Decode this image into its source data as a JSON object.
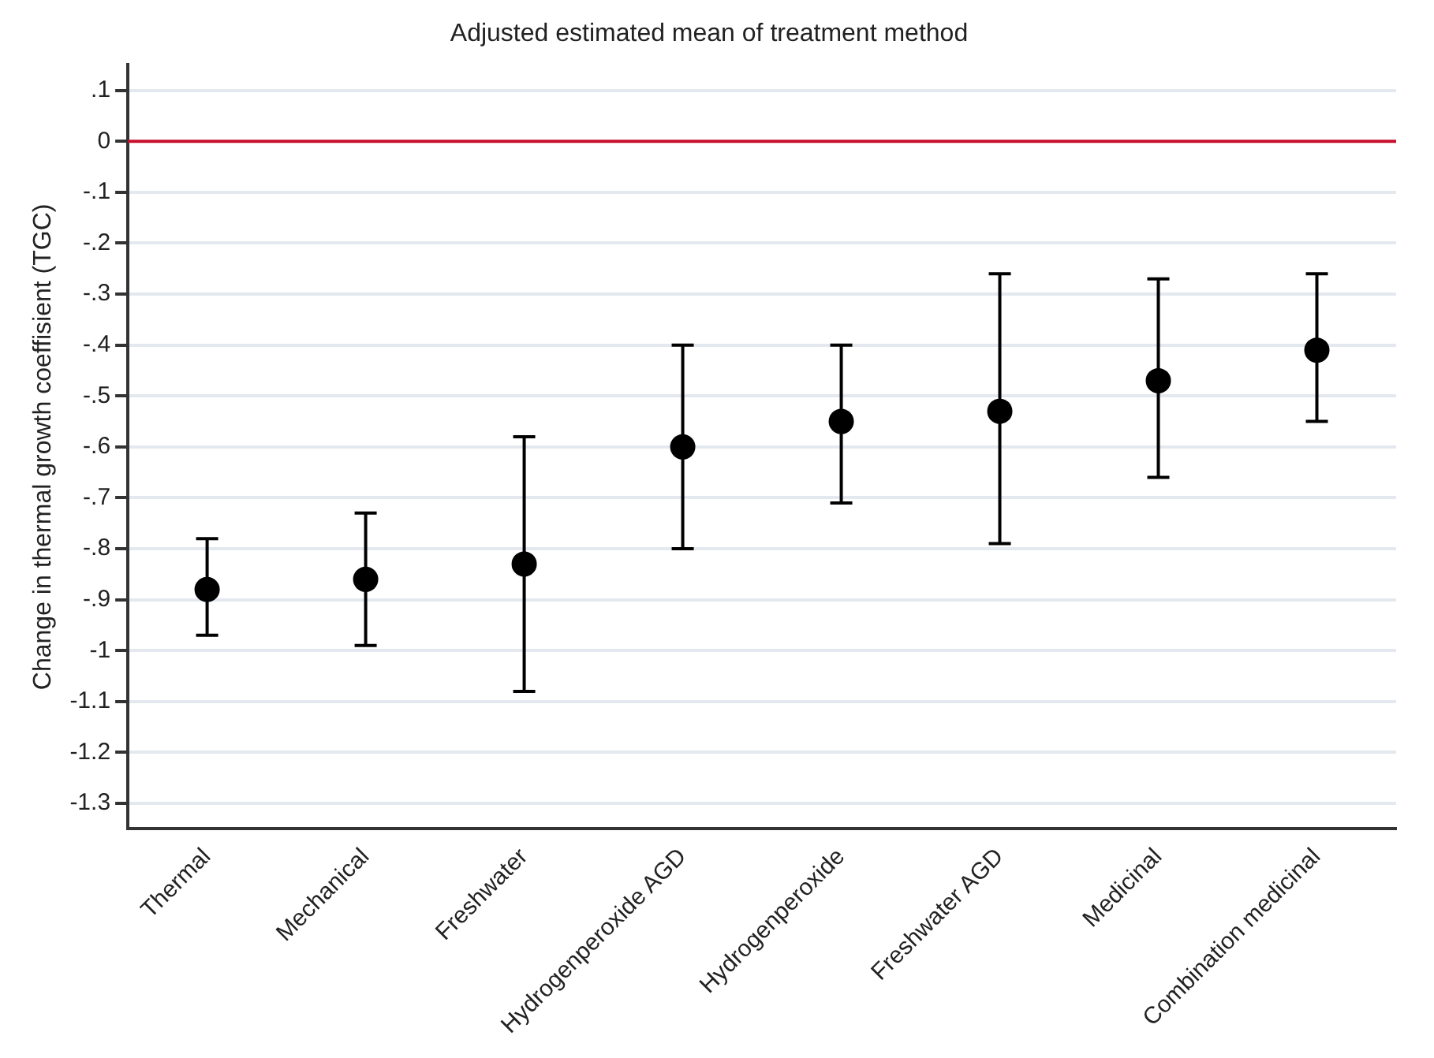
{
  "chart_data": {
    "type": "scatter",
    "title": "Adjusted estimated mean of treatment method",
    "ylabel": "Change in thermal growth coeffisient (TGC)",
    "categories": [
      "Thermal",
      "Mechanical",
      "Freshwater",
      "Hydrogenperoxide AGD",
      "Hydrogenperoxide",
      "Freshwater AGD",
      "Medicinal",
      "Combination medicinal"
    ],
    "values": [
      -0.88,
      -0.86,
      -0.83,
      -0.6,
      -0.55,
      -0.53,
      -0.47,
      -0.41
    ],
    "errors": [
      [
        -0.97,
        -0.78
      ],
      [
        -0.99,
        -0.73
      ],
      [
        -1.08,
        -0.58
      ],
      [
        -0.8,
        -0.4
      ],
      [
        -0.71,
        -0.4
      ],
      [
        -0.79,
        -0.26
      ],
      [
        -0.66,
        -0.27
      ],
      [
        -0.55,
        -0.26
      ]
    ],
    "color": "#000000",
    "marker": "circle",
    "ylim": [
      -1.35,
      0.15
    ],
    "yticks": [
      {
        "value": 0.1,
        "label": ".1"
      },
      0,
      {
        "value": -0.1,
        "label": "-.1"
      },
      {
        "value": -0.2,
        "label": "-.2"
      },
      {
        "value": -0.3,
        "label": "-.3"
      },
      {
        "value": -0.4,
        "label": "-.4"
      },
      {
        "value": -0.5,
        "label": "-.5"
      },
      {
        "value": -0.6,
        "label": "-.6"
      },
      {
        "value": -0.7,
        "label": "-.7"
      },
      {
        "value": -0.8,
        "label": "-.8"
      },
      {
        "value": -0.9,
        "label": "-.9"
      },
      -1,
      {
        "value": -1.1,
        "label": "-1.1"
      },
      {
        "value": -1.2,
        "label": "-1.2"
      },
      {
        "value": -1.3,
        "label": "-1.3"
      }
    ],
    "ref_lines": [
      {
        "axis": "y",
        "value": 0,
        "color": "#c8102e"
      }
    ],
    "grid": "y",
    "legend": false
  }
}
